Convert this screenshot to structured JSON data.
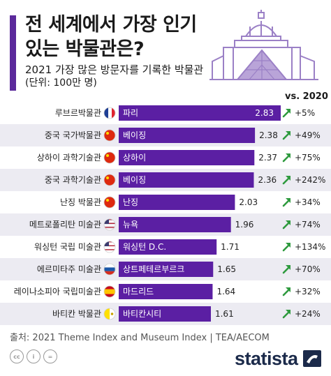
{
  "header": {
    "title": "전 세계에서 가장 인기있는 박물관은?",
    "subtitle": "2021 가장 많은 방문자를 기록한 박물관",
    "unit": "(단위: 100만 명)",
    "vs_label": "vs. 2020"
  },
  "colors": {
    "bar": "#5b1fa3",
    "accent": "#5b2a9b",
    "stripe": "#ecebf2",
    "arrow": "#2e9a3e",
    "illustration": "#9b80c6"
  },
  "icons": {
    "illustration": "museum-building-icon",
    "trend": "arrow-up-right-icon"
  },
  "chart_data": {
    "type": "bar",
    "orientation": "horizontal",
    "title": "2021 가장 많은 방문자를 기록한 박물관",
    "xlim": [
      0,
      2.83
    ],
    "categories": [
      "루브르박물관",
      "중국 국가박물관",
      "상하이 과학기술관",
      "중국 과학기술관",
      "난징 박물관",
      "메트로폴리탄 미술관",
      "워싱턴 국립 미술관",
      "에르미타주 미술관",
      "레이나소피아 국립미술관",
      "바티칸 박물관"
    ],
    "cities": [
      "파리",
      "베이징",
      "상하이",
      "베이징",
      "난징",
      "뉴욕",
      "워싱턴 D.C.",
      "상트페테르부르크",
      "마드리드",
      "바티칸시티"
    ],
    "flags": [
      "france-flag-icon",
      "china-flag-icon",
      "china-flag-icon",
      "china-flag-icon",
      "china-flag-icon",
      "usa-flag-icon",
      "usa-flag-icon",
      "russia-flag-icon",
      "spain-flag-icon",
      "vatican-flag-icon"
    ],
    "values": [
      2.83,
      2.38,
      2.37,
      2.36,
      2.03,
      1.96,
      1.71,
      1.65,
      1.64,
      1.61
    ],
    "value_labels": [
      "2.83",
      "2.38",
      "2.37",
      "2.36",
      "2.03",
      "1.96",
      "1.71",
      "1.65",
      "1.64",
      "1.61"
    ],
    "changes": [
      "+5%",
      "+49%",
      "+75%",
      "+242%",
      "+34%",
      "+74%",
      "+134%",
      "+70%",
      "+32%",
      "+24%"
    ]
  },
  "footer": {
    "source": "출처: 2021 Theme Index and Museum Index | TEA/AECOM",
    "brand": "statista",
    "license_icons": [
      "cc",
      "i",
      "="
    ]
  }
}
